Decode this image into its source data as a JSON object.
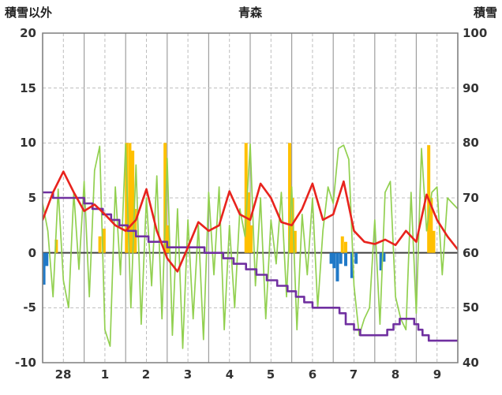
{
  "title": "青森",
  "chart_data": {
    "type": "line",
    "title": "青森",
    "x_range": [
      0,
      10
    ],
    "x_tick_labels": [
      "28",
      "1",
      "2",
      "3",
      "4",
      "5",
      "6",
      "7",
      "8",
      "9"
    ],
    "left_axis": {
      "label": "積雪以外",
      "min": -10,
      "max": 20,
      "tick_labels": [
        "20",
        "15",
        "10",
        "5",
        "0",
        "-5",
        "-10"
      ]
    },
    "right_axis": {
      "label": "積雪",
      "min": 40,
      "max": 100,
      "tick_labels": [
        "100",
        "90",
        "80",
        "70",
        "60",
        "50",
        "40"
      ]
    },
    "grid": {
      "day_line_color": "#9e9e9e",
      "dash_line_color": "#bdbdbd",
      "border_color": "#7f7f7f",
      "zero_line_color": "#3f3f3f"
    },
    "series": [
      {
        "name": "red-line",
        "axis": "left",
        "type": "line",
        "color": "#e8231d",
        "width": 2.6,
        "x_start": 0,
        "x_step": 0.25,
        "values": [
          3.0,
          5.5,
          7.4,
          5.5,
          3.8,
          4.4,
          3.5,
          2.5,
          2.0,
          3.0,
          5.8,
          2.0,
          -0.5,
          -1.7,
          0.5,
          2.8,
          2.0,
          2.5,
          5.6,
          3.5,
          3.0,
          6.3,
          5.0,
          2.8,
          2.5,
          4.0,
          6.3,
          3.0,
          3.5,
          6.5,
          2.0,
          1.0,
          0.8,
          1.2,
          0.7,
          2.0,
          1.0,
          5.3,
          3.0,
          1.5,
          0.3
        ]
      },
      {
        "name": "green-line",
        "axis": "left",
        "type": "line",
        "color": "#92d050",
        "width": 1.7,
        "x_start": 0,
        "x_step": 0.125,
        "values": [
          4.5,
          2.0,
          -4.0,
          5.8,
          -2.5,
          -5.0,
          5.5,
          -1.5,
          6.5,
          -4.0,
          7.5,
          9.7,
          -7.0,
          -8.5,
          6.0,
          -2.0,
          9.9,
          -5.0,
          8.0,
          -6.5,
          5.0,
          -3.0,
          7.0,
          -6.0,
          8.6,
          -7.5,
          4.0,
          -8.7,
          3.0,
          -6.0,
          2.5,
          -7.9,
          5.5,
          -2.0,
          6.0,
          -7.0,
          2.5,
          -5.0,
          4.0,
          1.5,
          9.9,
          -3.0,
          5.0,
          -6.0,
          3.0,
          -1.0,
          5.5,
          -4.0,
          6.0,
          -7.0,
          3.5,
          -2.0,
          5.0,
          -5.0,
          2.0,
          6.0,
          4.5,
          9.5,
          9.8,
          8.5,
          -3.0,
          -7.5,
          -6.0,
          -5.0,
          3.0,
          -6.5,
          5.5,
          6.5,
          -4.0,
          -6.0,
          -7.0,
          5.5,
          -5.5,
          9.5,
          2.0,
          5.5,
          6.0,
          -2.0,
          5.0,
          4.5,
          4.0
        ]
      },
      {
        "name": "purple-step-line",
        "axis": "right",
        "type": "step",
        "color": "#7030a0",
        "width": 2.6,
        "points": [
          [
            0,
            71
          ],
          [
            0.25,
            70
          ],
          [
            1.0,
            69
          ],
          [
            1.2,
            68
          ],
          [
            1.45,
            67
          ],
          [
            1.65,
            66
          ],
          [
            1.85,
            65
          ],
          [
            2.05,
            64
          ],
          [
            2.25,
            63
          ],
          [
            2.55,
            62
          ],
          [
            3.0,
            61
          ],
          [
            3.9,
            60
          ],
          [
            4.35,
            59
          ],
          [
            4.6,
            58
          ],
          [
            4.9,
            57
          ],
          [
            5.15,
            56
          ],
          [
            5.4,
            55
          ],
          [
            5.65,
            54
          ],
          [
            5.9,
            53
          ],
          [
            6.1,
            52
          ],
          [
            6.3,
            51
          ],
          [
            6.5,
            50
          ],
          [
            7.15,
            49
          ],
          [
            7.3,
            47
          ],
          [
            7.5,
            46
          ],
          [
            7.65,
            45
          ],
          [
            8.3,
            46
          ],
          [
            8.45,
            47
          ],
          [
            8.6,
            48
          ],
          [
            8.95,
            47
          ],
          [
            9.05,
            46
          ],
          [
            9.15,
            45
          ],
          [
            9.3,
            44
          ],
          [
            10,
            44
          ]
        ]
      },
      {
        "name": "orange-bars",
        "axis": "left",
        "type": "bar",
        "color": "#ffc000",
        "points": [
          [
            0.33,
            1.2
          ],
          [
            1.38,
            1.5
          ],
          [
            1.48,
            2.2
          ],
          [
            2.02,
            10
          ],
          [
            2.1,
            10
          ],
          [
            2.17,
            9.3
          ],
          [
            2.23,
            4
          ],
          [
            2.95,
            10
          ],
          [
            3.02,
            2.5
          ],
          [
            4.9,
            10
          ],
          [
            4.96,
            5.5
          ],
          [
            5.02,
            2.5
          ],
          [
            5.95,
            10
          ],
          [
            6.02,
            5
          ],
          [
            6.08,
            2
          ],
          [
            7.22,
            1.5
          ],
          [
            7.3,
            1.0
          ],
          [
            9.3,
            9.8
          ],
          [
            9.36,
            5
          ],
          [
            9.42,
            2
          ]
        ]
      },
      {
        "name": "blue-bars",
        "axis": "left",
        "type": "bar",
        "color": "#2079c7",
        "points": [
          [
            0.03,
            -2.9
          ],
          [
            0.1,
            -1.2
          ],
          [
            6.95,
            -1.0
          ],
          [
            7.02,
            -1.4
          ],
          [
            7.1,
            -2.6
          ],
          [
            7.18,
            -1.0
          ],
          [
            7.3,
            -1.2
          ],
          [
            7.45,
            -2.3
          ],
          [
            7.55,
            -1.0
          ],
          [
            8.15,
            -1.6
          ],
          [
            8.22,
            -0.8
          ]
        ]
      }
    ]
  }
}
